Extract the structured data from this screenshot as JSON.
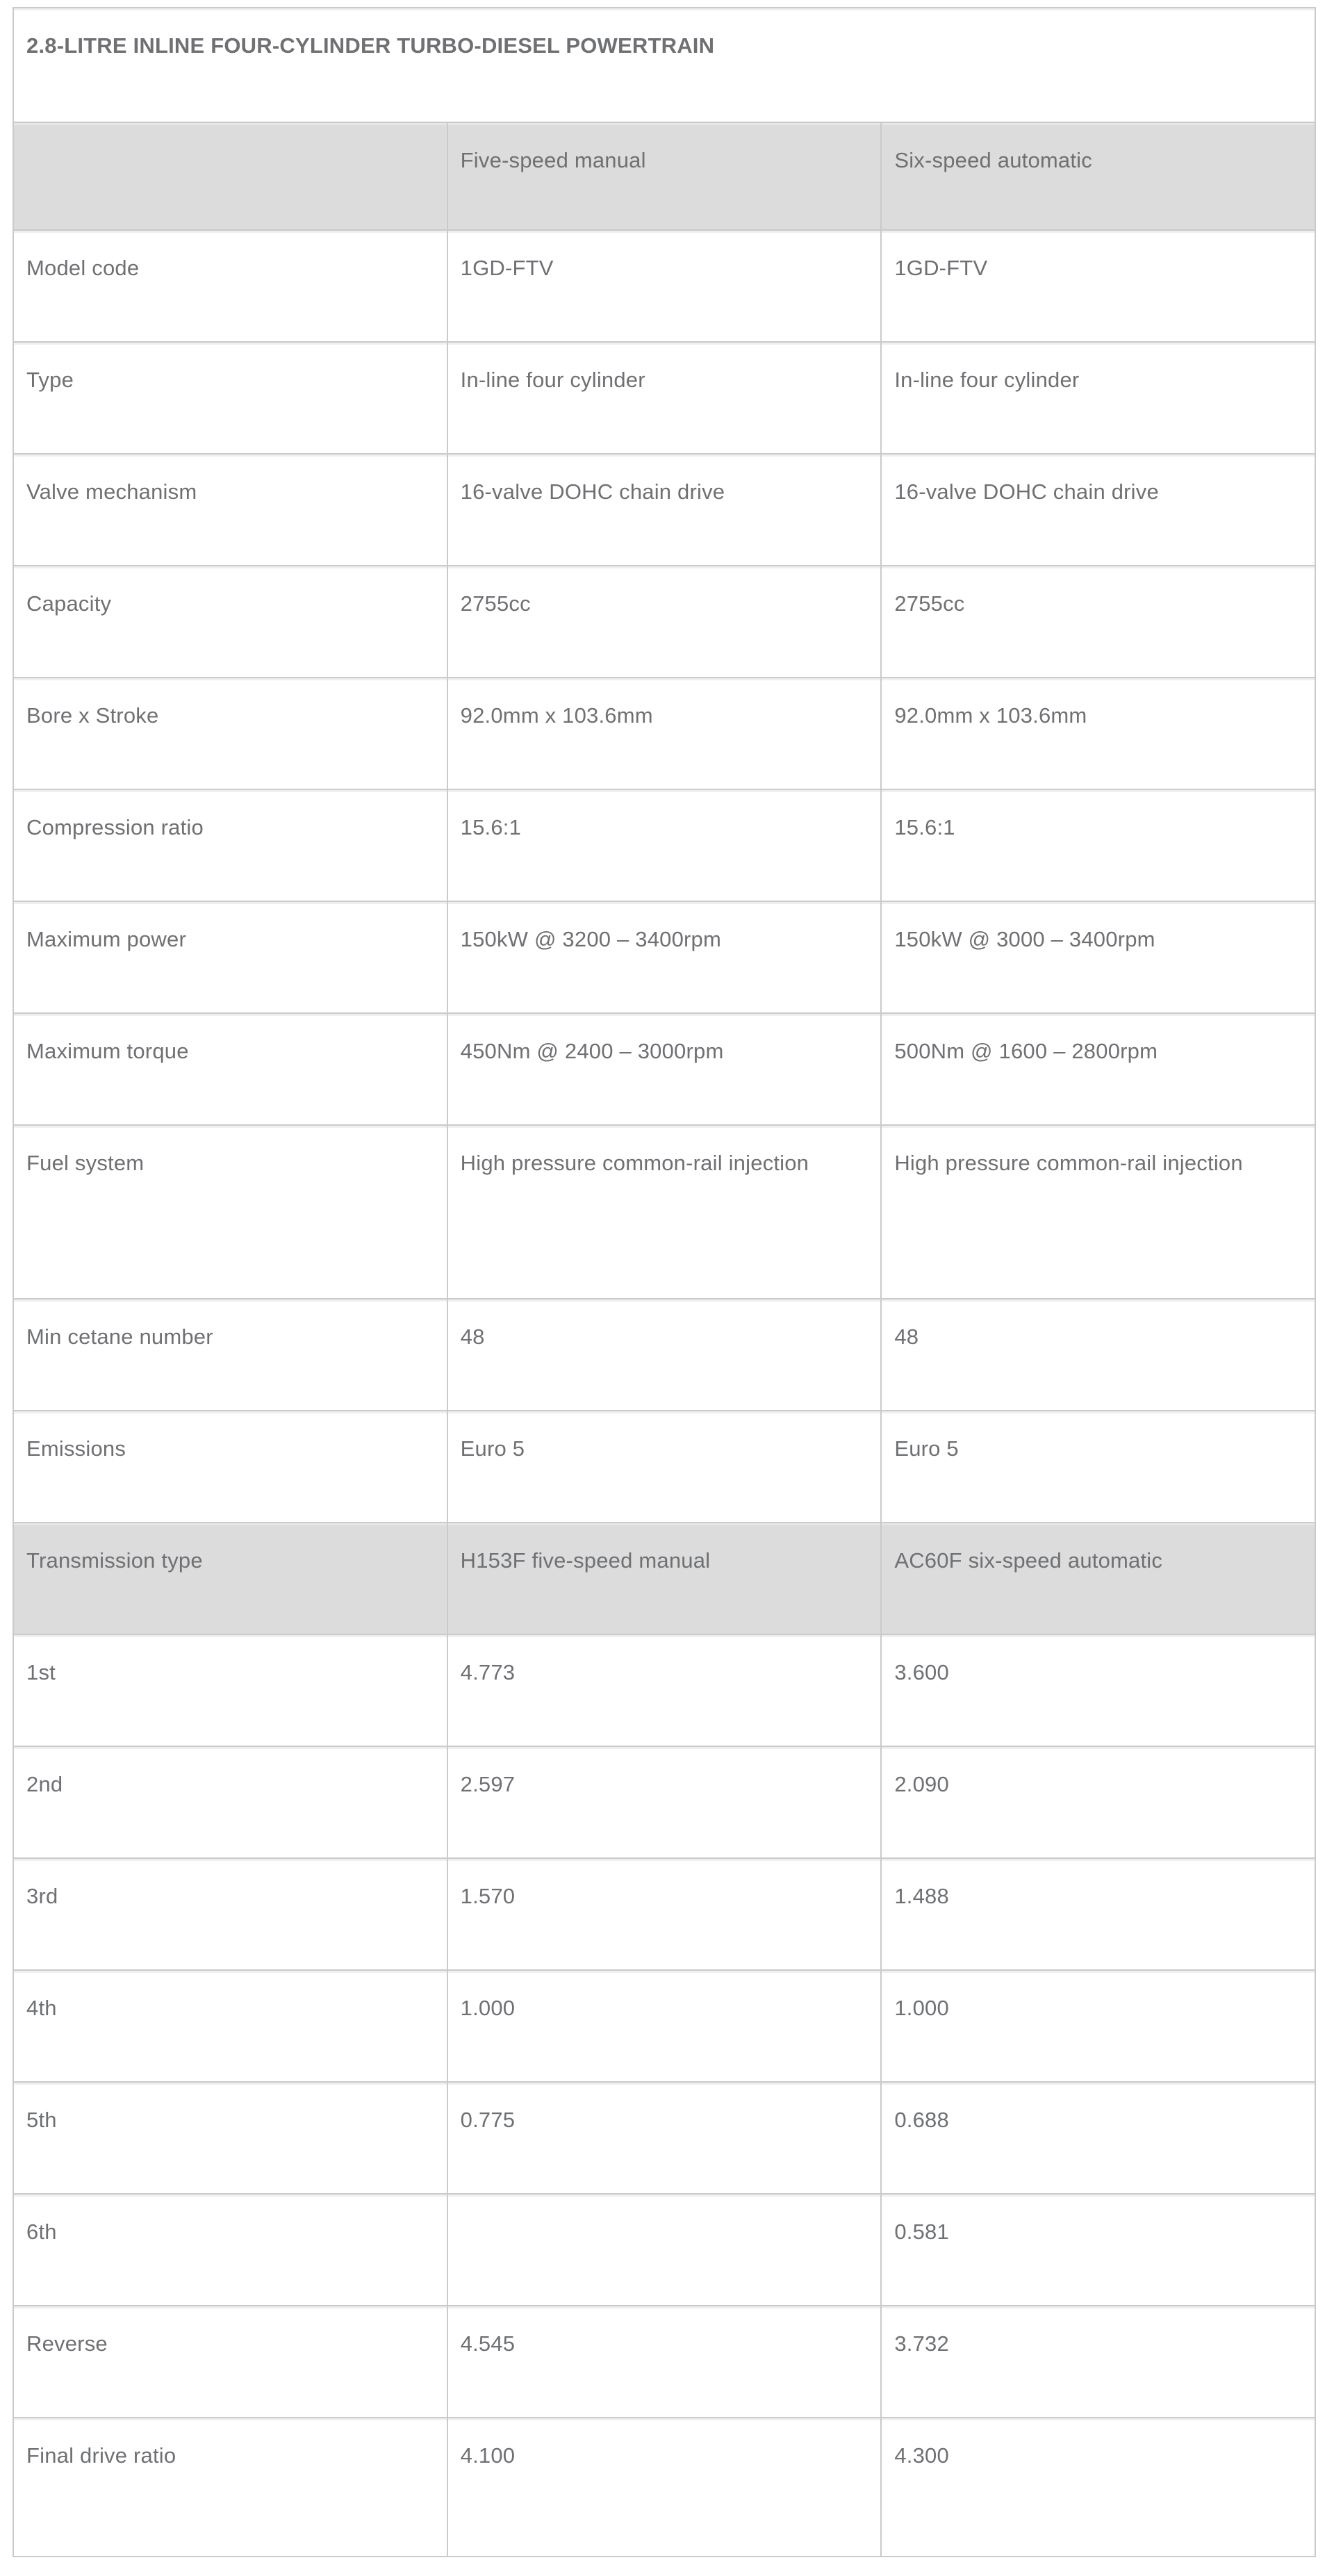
{
  "table": {
    "title": "2.8-LITRE INLINE FOUR-CYLINDER TURBO-DIESEL POWERTRAIN",
    "columns": {
      "label": "",
      "manual": "Five-speed manual",
      "automatic": "Six-speed automatic"
    },
    "rows": [
      {
        "label": "Model code",
        "manual": "1GD-FTV",
        "automatic": "1GD-FTV"
      },
      {
        "label": "Type",
        "manual": "In-line four cylinder",
        "automatic": "In-line four cylinder"
      },
      {
        "label": "Valve mechanism",
        "manual": "16-valve DOHC chain drive",
        "automatic": "16-valve DOHC chain drive"
      },
      {
        "label": "Capacity",
        "manual": "2755cc",
        "automatic": "2755cc"
      },
      {
        "label": "Bore x Stroke",
        "manual": "92.0mm x 103.6mm",
        "automatic": "92.0mm x 103.6mm"
      },
      {
        "label": "Compression ratio",
        "manual": "15.6:1",
        "automatic": "15.6:1"
      },
      {
        "label": "Maximum power",
        "manual": "150kW @ 3200 – 3400rpm",
        "automatic": "150kW @ 3000 – 3400rpm"
      },
      {
        "label": "Maximum torque",
        "manual": "450Nm @ 2400 – 3000rpm",
        "automatic": "500Nm @ 1600 – 2800rpm"
      },
      {
        "label": "Fuel system",
        "manual": "High pressure common-rail injection",
        "automatic": "High pressure common-rail injection"
      },
      {
        "label": "Min cetane number",
        "manual": "48",
        "automatic": "48"
      },
      {
        "label": "Emissions",
        "manual": "Euro 5",
        "automatic": "Euro 5"
      },
      {
        "label": "Transmission type",
        "manual": "H153F five-speed manual",
        "automatic": "AC60F six-speed automatic"
      },
      {
        "label": "1st",
        "manual": "4.773",
        "automatic": "3.600"
      },
      {
        "label": "2nd",
        "manual": "2.597",
        "automatic": "2.090"
      },
      {
        "label": "3rd",
        "manual": "1.570",
        "automatic": "1.488"
      },
      {
        "label": "4th",
        "manual": "1.000",
        "automatic": "1.000"
      },
      {
        "label": "5th",
        "manual": "0.775",
        "automatic": "0.688"
      },
      {
        "label": "6th",
        "manual": "",
        "automatic": "0.581"
      },
      {
        "label": "Reverse",
        "manual": "4.545",
        "automatic": "3.732"
      },
      {
        "label": "Final drive ratio",
        "manual": "4.100",
        "automatic": "4.300"
      }
    ]
  },
  "colors": {
    "page_bg": "#ffffff",
    "header_row_bg": "#dcdcdc",
    "subheader_row_bg": "#dcdcdc",
    "cell_border": "#c9cacb",
    "title_text": "#3e4145",
    "body_text": "#6e7073"
  }
}
